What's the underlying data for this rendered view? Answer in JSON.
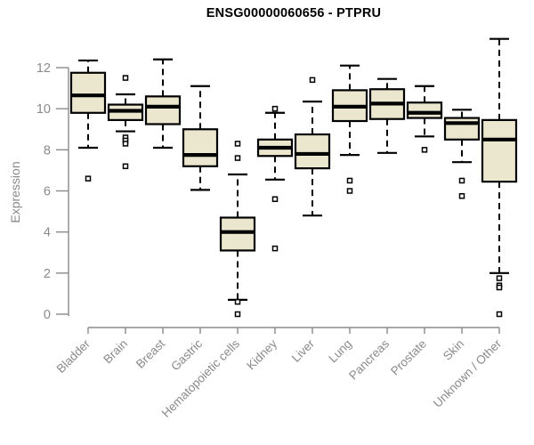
{
  "title": "ENSG00000060656 - PTPRU",
  "chart_data": {
    "type": "boxplot",
    "title": "ENSG00000060656 - PTPRU",
    "xlabel": "",
    "ylabel": "Expression",
    "yticks": [
      0,
      2,
      4,
      6,
      8,
      10,
      12
    ],
    "ylim": [
      0,
      13.6
    ],
    "grid": false,
    "legend": false,
    "box_fill": "#ebe6ce",
    "box_border": "#000000",
    "median_color": "#000000",
    "whisker_style": "dashed",
    "outlier_marker": "open-square",
    "axis_color": "#8a8a8a",
    "tick_label_color": "#8a8a8a",
    "title_color": "#000000",
    "categories": [
      "Bladder",
      "Brain",
      "Breast",
      "Gastric",
      "Hematopoietic cells",
      "Kidney",
      "Liver",
      "Lung",
      "Pancreas",
      "Prostate",
      "Skin",
      "Unknown / Other"
    ],
    "series": [
      {
        "name": "Bladder",
        "whisker_low": 8.1,
        "q1": 9.8,
        "median": 10.65,
        "q3": 11.75,
        "whisker_high": 12.35,
        "outliers": [
          6.6
        ]
      },
      {
        "name": "Brain",
        "whisker_low": 8.9,
        "q1": 9.45,
        "median": 9.9,
        "q3": 10.2,
        "whisker_high": 10.7,
        "outliers": [
          11.5,
          8.6,
          8.45,
          8.3,
          7.2
        ]
      },
      {
        "name": "Breast",
        "whisker_low": 8.1,
        "q1": 9.25,
        "median": 10.1,
        "q3": 10.6,
        "whisker_high": 12.4,
        "outliers": []
      },
      {
        "name": "Gastric",
        "whisker_low": 6.05,
        "q1": 7.2,
        "median": 7.75,
        "q3": 9.0,
        "whisker_high": 11.1,
        "outliers": []
      },
      {
        "name": "Hematopoietic cells",
        "whisker_low": 0.7,
        "q1": 3.1,
        "median": 4.0,
        "q3": 4.7,
        "whisker_high": 6.8,
        "outliers": [
          8.3,
          7.6,
          0.6,
          0
        ]
      },
      {
        "name": "Kidney",
        "whisker_low": 6.55,
        "q1": 7.7,
        "median": 8.1,
        "q3": 8.5,
        "whisker_high": 9.8,
        "outliers": [
          10.0,
          5.6,
          3.2
        ]
      },
      {
        "name": "Liver",
        "whisker_low": 4.8,
        "q1": 7.1,
        "median": 7.8,
        "q3": 8.75,
        "whisker_high": 10.35,
        "outliers": [
          11.4
        ]
      },
      {
        "name": "Lung",
        "whisker_low": 7.75,
        "q1": 9.4,
        "median": 10.1,
        "q3": 10.9,
        "whisker_high": 12.1,
        "outliers": [
          6.5,
          6.0
        ]
      },
      {
        "name": "Pancreas",
        "whisker_low": 7.85,
        "q1": 9.5,
        "median": 10.25,
        "q3": 10.95,
        "whisker_high": 11.45,
        "outliers": []
      },
      {
        "name": "Prostate",
        "whisker_low": 8.65,
        "q1": 9.55,
        "median": 9.8,
        "q3": 10.3,
        "whisker_high": 11.1,
        "outliers": [
          8.0
        ]
      },
      {
        "name": "Skin",
        "whisker_low": 7.4,
        "q1": 8.5,
        "median": 9.3,
        "q3": 9.55,
        "whisker_high": 9.95,
        "outliers": [
          6.5,
          5.75
        ]
      },
      {
        "name": "Unknown / Other",
        "whisker_low": 2.0,
        "q1": 6.45,
        "median": 8.5,
        "q3": 9.45,
        "whisker_high": 13.4,
        "outliers": [
          1.75,
          1.4,
          1.3,
          0
        ]
      }
    ]
  }
}
